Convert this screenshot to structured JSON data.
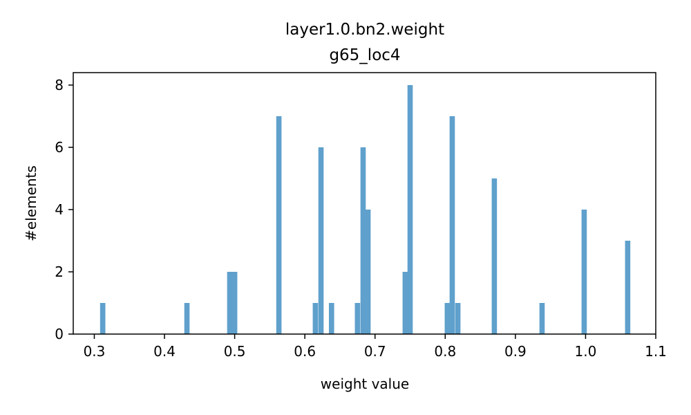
{
  "chart_data": {
    "type": "bar",
    "title": "layer1.0.bn2.weight",
    "subtitle": "g65_loc4",
    "xlabel": "weight value",
    "ylabel": "#elements",
    "xlim": [
      0.27,
      1.1
    ],
    "ylim": [
      0,
      8.4
    ],
    "x_ticks": [
      "0.3",
      "0.4",
      "0.5",
      "0.6",
      "0.7",
      "0.8",
      "0.9",
      "1.0",
      "1.1"
    ],
    "y_ticks": [
      "0",
      "2",
      "4",
      "6",
      "8"
    ],
    "bin_width": 0.0075,
    "bar_color": "#5fa0cc",
    "bins": [
      {
        "x": 0.312,
        "count": 1
      },
      {
        "x": 0.432,
        "count": 1
      },
      {
        "x": 0.493,
        "count": 2
      },
      {
        "x": 0.5,
        "count": 2
      },
      {
        "x": 0.563,
        "count": 7
      },
      {
        "x": 0.615,
        "count": 1
      },
      {
        "x": 0.623,
        "count": 6
      },
      {
        "x": 0.638,
        "count": 1
      },
      {
        "x": 0.675,
        "count": 1
      },
      {
        "x": 0.683,
        "count": 6
      },
      {
        "x": 0.69,
        "count": 4
      },
      {
        "x": 0.743,
        "count": 2
      },
      {
        "x": 0.75,
        "count": 8
      },
      {
        "x": 0.803,
        "count": 1
      },
      {
        "x": 0.81,
        "count": 7
      },
      {
        "x": 0.818,
        "count": 1
      },
      {
        "x": 0.87,
        "count": 5
      },
      {
        "x": 0.938,
        "count": 1
      },
      {
        "x": 0.998,
        "count": 4
      },
      {
        "x": 1.06,
        "count": 3
      }
    ]
  }
}
